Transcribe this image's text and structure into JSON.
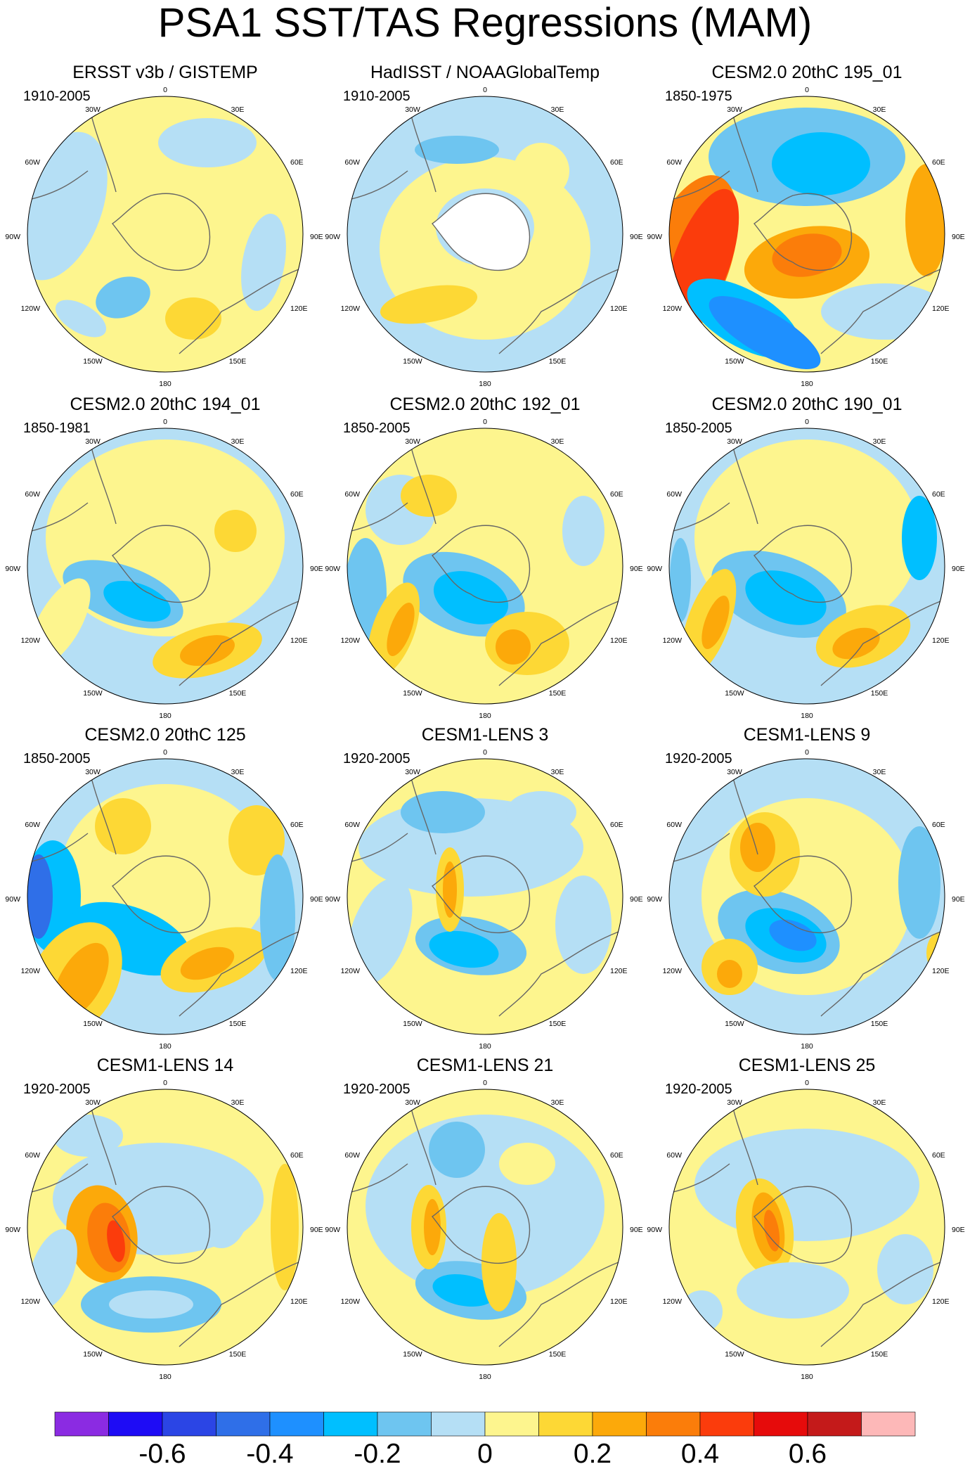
{
  "title": "PSA1 SST/TAS Regressions (MAM)",
  "map_labels": [
    "0",
    "30E",
    "60E",
    "90E",
    "120E",
    "150E",
    "180",
    "150W",
    "120W",
    "90W",
    "60W",
    "30W"
  ],
  "panels": [
    {
      "title": "ERSST v3b / GISTEMP",
      "years": "1910-2005",
      "pattern": "obs1"
    },
    {
      "title": "HadISST / NOAAGlobalTemp",
      "years": "1910-2005",
      "pattern": "obs2"
    },
    {
      "title": "CESM2.0 20thC 195_01",
      "years": "1850-1975",
      "pattern": "m195"
    },
    {
      "title": "CESM2.0 20thC 194_01",
      "years": "1850-1981",
      "pattern": "m194"
    },
    {
      "title": "CESM2.0 20thC 192_01",
      "years": "1850-2005",
      "pattern": "m192"
    },
    {
      "title": "CESM2.0 20thC 190_01",
      "years": "1850-2005",
      "pattern": "m190"
    },
    {
      "title": "CESM2.0 20thC 125",
      "years": "1850-2005",
      "pattern": "m125"
    },
    {
      "title": "CESM1-LENS 3",
      "years": "1920-2005",
      "pattern": "l3"
    },
    {
      "title": "CESM1-LENS 9",
      "years": "1920-2005",
      "pattern": "l9"
    },
    {
      "title": "CESM1-LENS 14",
      "years": "1920-2005",
      "pattern": "l14"
    },
    {
      "title": "CESM1-LENS 21",
      "years": "1920-2005",
      "pattern": "l21"
    },
    {
      "title": "CESM1-LENS 25",
      "years": "1920-2005",
      "pattern": "l25"
    }
  ],
  "colorbar": {
    "colors": [
      "#8b2be2",
      "#1e0cf5",
      "#2b45e5",
      "#2f6fe8",
      "#1e90ff",
      "#00bfff",
      "#6ec5f0",
      "#b5dff5",
      "#fdf58e",
      "#fdd835",
      "#fca90a",
      "#fb7d0a",
      "#fb3c0c",
      "#e60b0b",
      "#c41a1a",
      "#fdb8b8"
    ],
    "labels": [
      {
        "text": "-0.6",
        "value": -0.6
      },
      {
        "text": "-0.4",
        "value": -0.4
      },
      {
        "text": "-0.2",
        "value": -0.2
      },
      {
        "text": "0",
        "value": 0
      },
      {
        "text": "0.2",
        "value": 0.2
      },
      {
        "text": "0.4",
        "value": 0.4
      },
      {
        "text": "0.6",
        "value": 0.6
      }
    ]
  }
}
